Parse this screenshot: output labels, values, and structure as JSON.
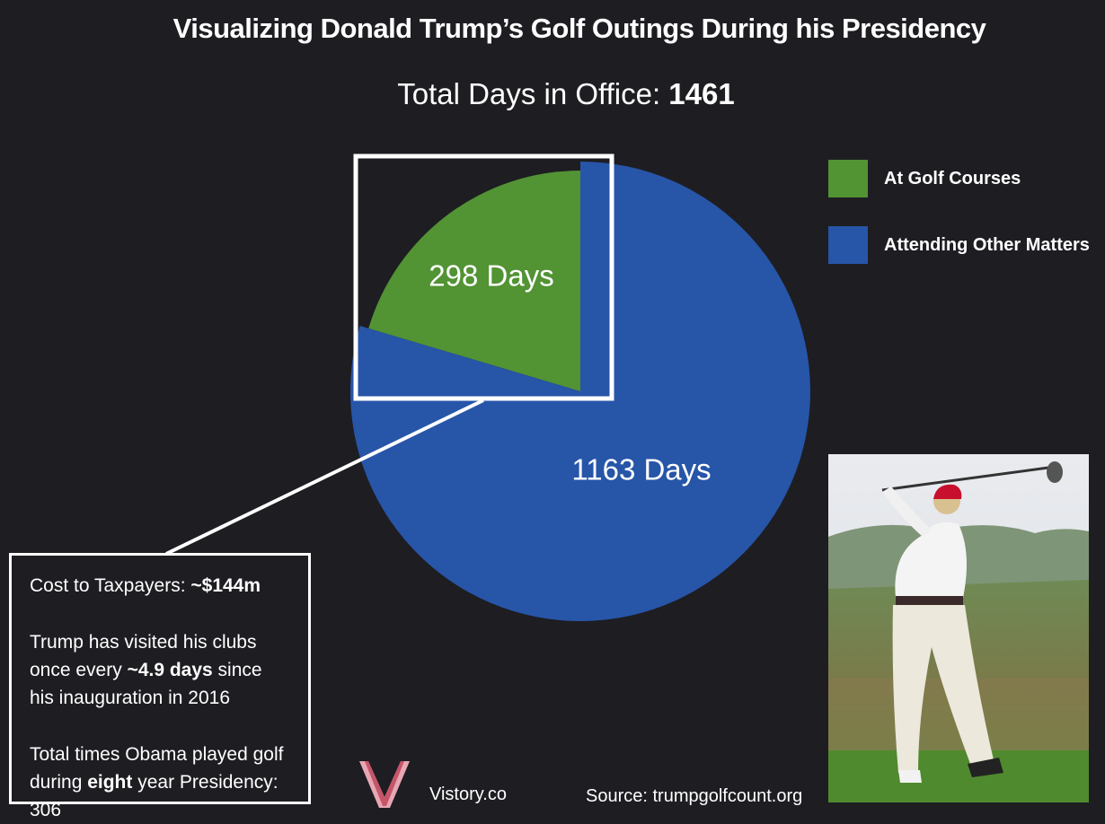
{
  "header": {
    "title": "Visualizing Donald Trump’s Golf Outings During his Presidency",
    "subtitle_prefix": "Total Days in Office: ",
    "subtitle_value": "1461"
  },
  "chart_data": {
    "type": "pie",
    "title": "Visualizing Donald Trump’s Golf Outings During his Presidency",
    "subtitle": "Total Days in Office: 1461",
    "categories": [
      "At Golf Courses",
      "Attending Other Matters"
    ],
    "values": [
      298,
      1163
    ],
    "total": 1461,
    "data_labels": [
      "298 Days",
      "1163 Days"
    ],
    "colors": [
      "#529334",
      "#2755a8"
    ],
    "legend_position": "top-right",
    "exploded_slice": "At Golf Courses"
  },
  "legend": {
    "items": [
      {
        "label": "At Golf Courses",
        "color": "#529334"
      },
      {
        "label": "Attending Other Matters",
        "color": "#2755a8"
      }
    ]
  },
  "info_box": {
    "cost_label": "Cost to Taxpayers: ",
    "cost_value": "~$144m",
    "visits_part1": "Trump has visited his clubs once every ",
    "visits_value": "~4.9 days",
    "visits_part2": " since his inauguration in 2016",
    "obama_part1": "Total times Obama played golf during ",
    "obama_bold": "eight",
    "obama_part2": " year Presidency: 306"
  },
  "footer": {
    "brand": "Vistory.co",
    "source": "Source: trumpgolfcount.org"
  },
  "colors": {
    "background": "#1e1d22",
    "golf": "#529334",
    "other": "#2755a8",
    "highlight": "#ffffff"
  },
  "icons": {
    "logo": "vistory-logo-icon",
    "photo": "golfer-photo"
  }
}
